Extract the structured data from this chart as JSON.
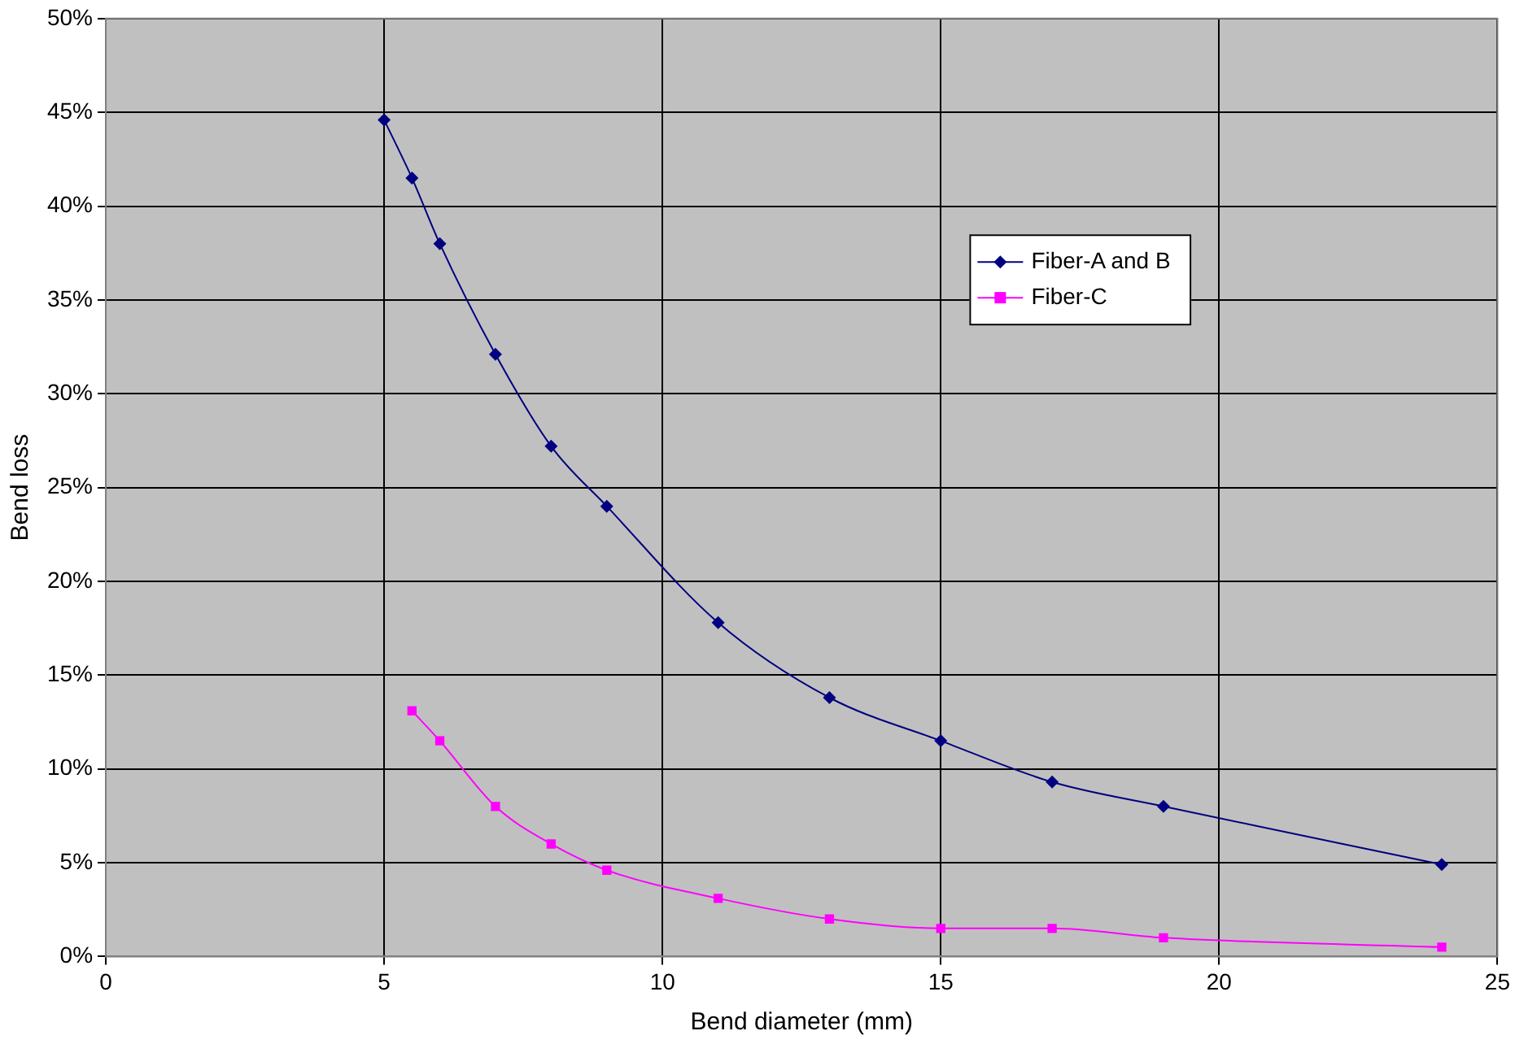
{
  "chart_data": {
    "type": "line",
    "xlabel": "Bend diameter (mm)",
    "ylabel": "Bend loss",
    "series": [
      {
        "name": "Fiber-A and B",
        "color": "#000080",
        "marker": "diamond",
        "x": [
          5,
          5.5,
          6,
          7,
          8,
          9,
          11,
          13,
          15,
          17,
          19,
          24
        ],
        "values": [
          44.6,
          41.5,
          38,
          32.1,
          27.2,
          24,
          17.8,
          13.8,
          11.5,
          9.3,
          8,
          4.9
        ]
      },
      {
        "name": "Fiber-C",
        "color": "#ff00ff",
        "marker": "square",
        "x": [
          5.5,
          6,
          7,
          8,
          9,
          11,
          13,
          15,
          17,
          19,
          24
        ],
        "values": [
          13.1,
          11.5,
          8,
          6,
          4.6,
          3.1,
          2,
          1.5,
          1.5,
          1,
          0.5
        ]
      }
    ],
    "xlim": [
      0,
      25
    ],
    "xticks": [
      0,
      5,
      10,
      15,
      20,
      25
    ],
    "ylim": [
      0,
      50
    ],
    "yticks": [
      {
        "value": 0,
        "label": "0%"
      },
      {
        "value": 5,
        "label": "5%"
      },
      {
        "value": 10,
        "label": "10%"
      },
      {
        "value": 15,
        "label": "15%"
      },
      {
        "value": 20,
        "label": "20%"
      },
      {
        "value": 25,
        "label": "25%"
      },
      {
        "value": 30,
        "label": "30%"
      },
      {
        "value": 35,
        "label": "35%"
      },
      {
        "value": 40,
        "label": "40%"
      },
      {
        "value": 45,
        "label": "45%"
      },
      {
        "value": 50,
        "label": "50%"
      }
    ],
    "grid": true,
    "legend": "top right",
    "line_style": "solid"
  }
}
